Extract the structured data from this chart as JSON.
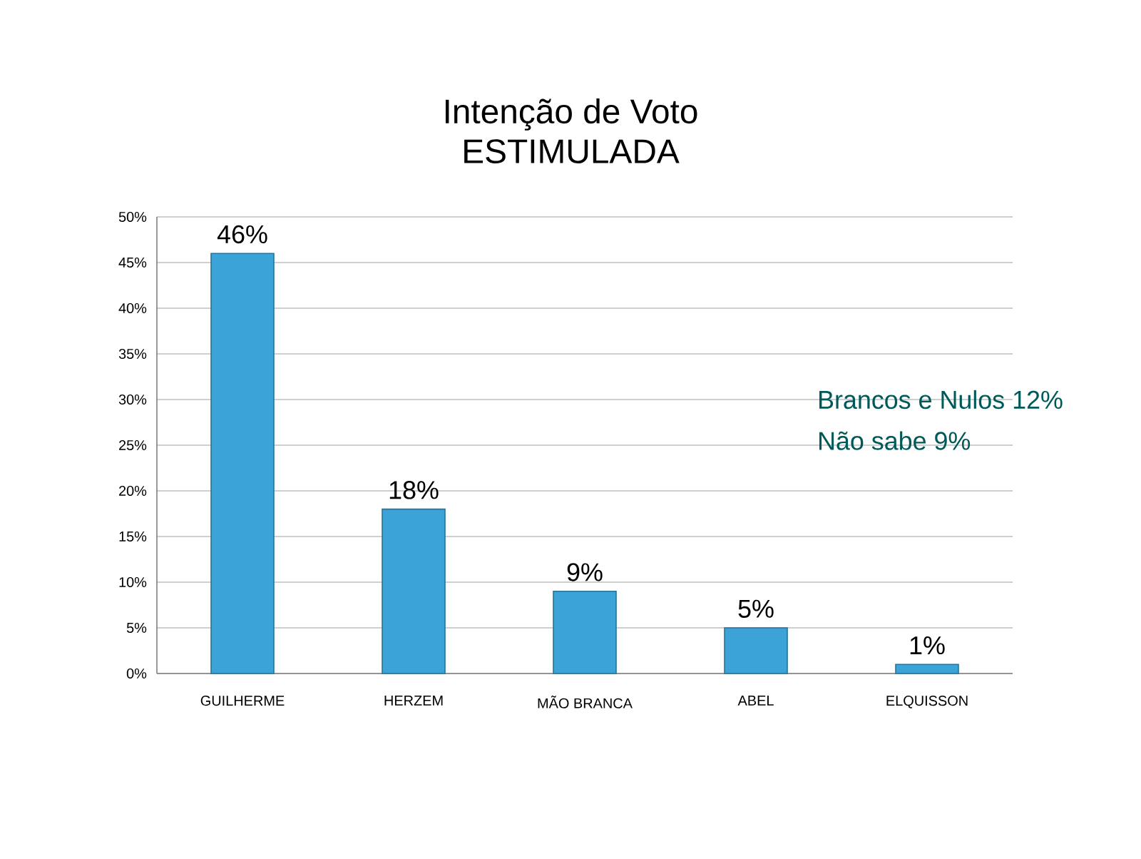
{
  "chart_data": {
    "type": "bar",
    "title": "Intenção de Voto",
    "subtitle": "ESTIMULADA",
    "categories": [
      "GUILHERME",
      "HERZEM",
      "MÃO BRANCA",
      "ABEL",
      "ELQUISSON"
    ],
    "values": [
      46,
      18,
      9,
      5,
      1
    ],
    "value_labels": [
      "46%",
      "18%",
      "9%",
      "5%",
      "1%"
    ],
    "color": "#3ba3d8",
    "ylim": [
      0,
      50
    ],
    "yticks": [
      {
        "value": 0,
        "label": "0%"
      },
      {
        "value": 5,
        "label": "5%"
      },
      {
        "value": 10,
        "label": "10%"
      },
      {
        "value": 15,
        "label": "15%"
      },
      {
        "value": 20,
        "label": "20%"
      },
      {
        "value": 25,
        "label": "25%"
      },
      {
        "value": 30,
        "label": "30%"
      },
      {
        "value": 35,
        "label": "35%"
      },
      {
        "value": 40,
        "label": "40%"
      },
      {
        "value": 45,
        "label": "45%"
      },
      {
        "value": 50,
        "label": "50%"
      }
    ],
    "grid": "y",
    "annotations": [
      "Brancos e Nulos 12%",
      "Não sabe 9%"
    ]
  }
}
